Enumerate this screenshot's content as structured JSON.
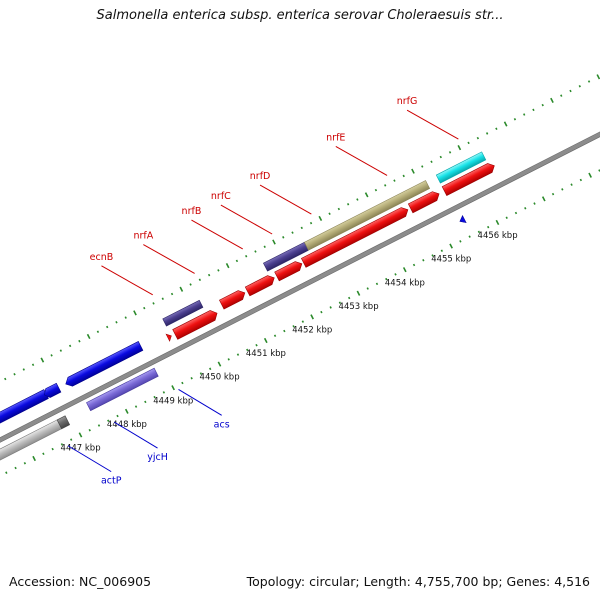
{
  "title": "Salmonella enterica subsp. enterica serovar Choleraesuis str...",
  "footer": {
    "accession": "Accession: NC_006905",
    "stats": "Topology: circular; Length: 4,755,700 bp; Genes: 4,516"
  },
  "colors": {
    "backbone": "#8c8c8c",
    "tick_green": "#2b8a2b",
    "label_red": "#cc0000",
    "label_blue": "#0000cc",
    "gene_red": "#ee1111",
    "gene_blue": "#0a0ae0",
    "gene_navy": "#4b3f8f",
    "gene_khaki": "#b5ad78",
    "gene_lavender": "#7a6ad6",
    "gene_grey": "#bcbcbc",
    "gene_darkgrey": "#6a6a6a",
    "gene_cyan": "#17e3e8"
  },
  "kbp_ticks": [
    {
      "label": "4447 kbp",
      "s": 67
    },
    {
      "label": "4448 kbp",
      "s": 119
    },
    {
      "label": "4449 kbp",
      "s": 171
    },
    {
      "label": "4450 kbp",
      "s": 223
    },
    {
      "label": "4451 kbp",
      "s": 275
    },
    {
      "label": "4452 kbp",
      "s": 327
    },
    {
      "label": "4453 kbp",
      "s": 379
    },
    {
      "label": "4454 kbp",
      "s": 431
    },
    {
      "label": "4455 kbp",
      "s": 483
    },
    {
      "label": "4456 kbp",
      "s": 535
    }
  ],
  "genes_top": [
    {
      "label": "nrfG",
      "s": 545
    },
    {
      "label": "nrfE",
      "s": 465
    },
    {
      "label": "nrfD",
      "s": 380
    },
    {
      "label": "nrfC",
      "s": 336
    },
    {
      "label": "nrfB",
      "s": 303
    },
    {
      "label": "nrfA",
      "s": 249
    },
    {
      "label": "ecnB",
      "s": 202
    }
  ],
  "genes_bottom": [
    {
      "label": "acs",
      "s": 182
    },
    {
      "label": "yjcH",
      "s": 110
    },
    {
      "label": "actP",
      "s": 58
    }
  ]
}
